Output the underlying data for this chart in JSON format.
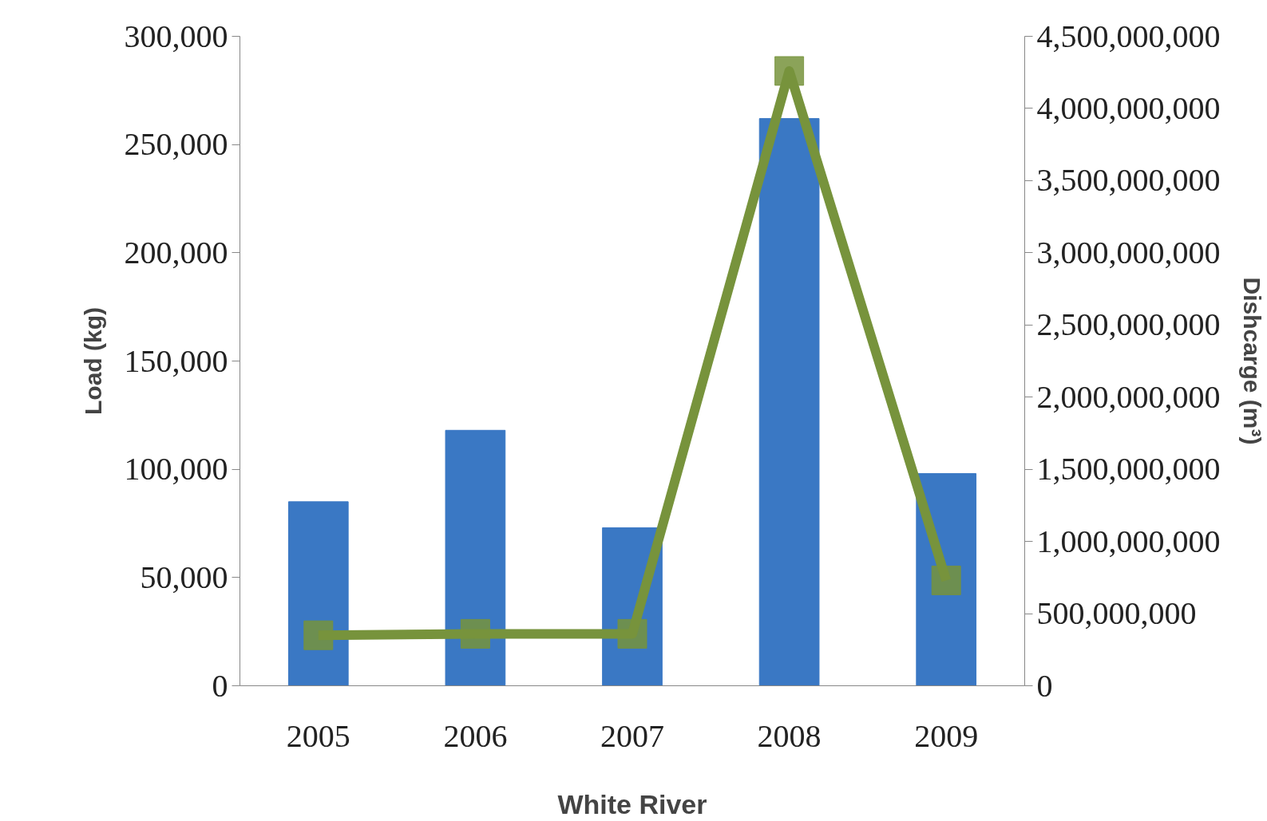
{
  "chart_data": {
    "type": "bar",
    "xlabel": "White River",
    "ylabel": "Load (kg)",
    "y2label": "Dishcarge (m³)",
    "categories": [
      "2005",
      "2006",
      "2007",
      "2008",
      "2009"
    ],
    "series": [
      {
        "color": "#3a78c4",
        "values": [
          85000,
          118000,
          73000,
          262000,
          98000
        ]
      },
      {
        "type": "line",
        "axis": "y2",
        "color": "#77933c",
        "marker": "square",
        "values": [
          350000000,
          360000000,
          360000000,
          4260000000,
          730000000
        ]
      }
    ],
    "ylim": [
      0,
      300000
    ],
    "yticks": [
      {
        "value": 0,
        "label": "0"
      },
      {
        "value": 50000,
        "label": "50,000"
      },
      {
        "value": 100000,
        "label": "100,000"
      },
      {
        "value": 150000,
        "label": "150,000"
      },
      {
        "value": 200000,
        "label": "200,000"
      },
      {
        "value": 250000,
        "label": "250,000"
      },
      {
        "value": 300000,
        "label": "300,000"
      }
    ],
    "y2lim": [
      0,
      4500000000
    ],
    "y2ticks": [
      {
        "value": 0,
        "label": "0"
      },
      {
        "value": 500000000,
        "label": "500,000,000"
      },
      {
        "value": 1000000000,
        "label": "1,000,000,000"
      },
      {
        "value": 1500000000,
        "label": "1,500,000,000"
      },
      {
        "value": 2000000000,
        "label": "2,000,000,000"
      },
      {
        "value": 2500000000,
        "label": "2,500,000,000"
      },
      {
        "value": 3000000000,
        "label": "3,000,000,000"
      },
      {
        "value": 3500000000,
        "label": "3,500,000,000"
      },
      {
        "value": 4000000000,
        "label": "4,000,000,000"
      },
      {
        "value": 4500000000,
        "label": "4,500,000,000"
      }
    ],
    "grid": false
  }
}
